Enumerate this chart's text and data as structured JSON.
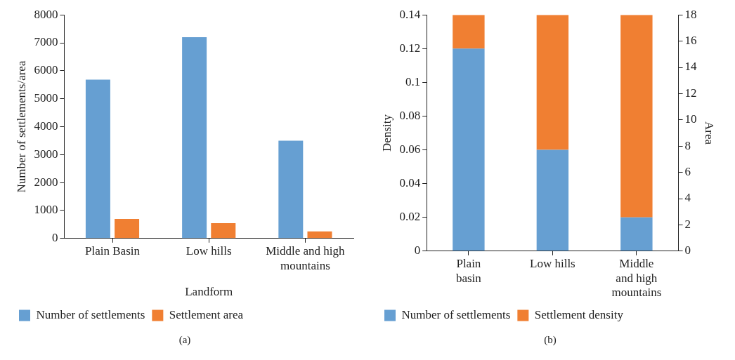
{
  "chart_data": [
    {
      "type": "bar",
      "xlabel": "Landform",
      "ylabel": "Number of settlements/area",
      "categories": [
        "Plain Basin",
        "Low hills",
        "Middle and high mountains"
      ],
      "series": [
        {
          "name": "Number of settlements",
          "color": "#669fd2",
          "values": [
            5680,
            7200,
            3500
          ]
        },
        {
          "name": "Settlement area",
          "color": "#f07f32",
          "values": [
            700,
            550,
            250
          ]
        }
      ],
      "ylim": [
        0,
        8000
      ],
      "yticks": [
        0,
        1000,
        2000,
        3000,
        4000,
        5000,
        6000,
        7000,
        8000
      ],
      "grid": false,
      "legend": "bottom",
      "annotations": [
        "(a)"
      ]
    },
    {
      "type": "bar",
      "stacked": true,
      "ylabel": "Density",
      "y2label": "Area",
      "categories": [
        "Plain basin",
        "Low hills",
        "Middle and high mountains"
      ],
      "series": [
        {
          "name": "Number of settlements",
          "color": "#669fd2",
          "values": [
            0.12,
            0.06,
            0.02
          ]
        },
        {
          "name": "Settlement density",
          "color": "#f07f32",
          "values": [
            0.02,
            0.08,
            0.12
          ]
        }
      ],
      "ylim": [
        0,
        0.14
      ],
      "yticks": [
        0,
        0.02,
        0.04,
        0.06,
        0.08,
        0.1,
        0.12,
        0.14
      ],
      "y2lim": [
        0,
        18
      ],
      "y2ticks": [
        0,
        2,
        4,
        6,
        8,
        10,
        12,
        14,
        16,
        18
      ],
      "grid": false,
      "legend": "bottom",
      "annotations": [
        "(b)"
      ]
    }
  ]
}
